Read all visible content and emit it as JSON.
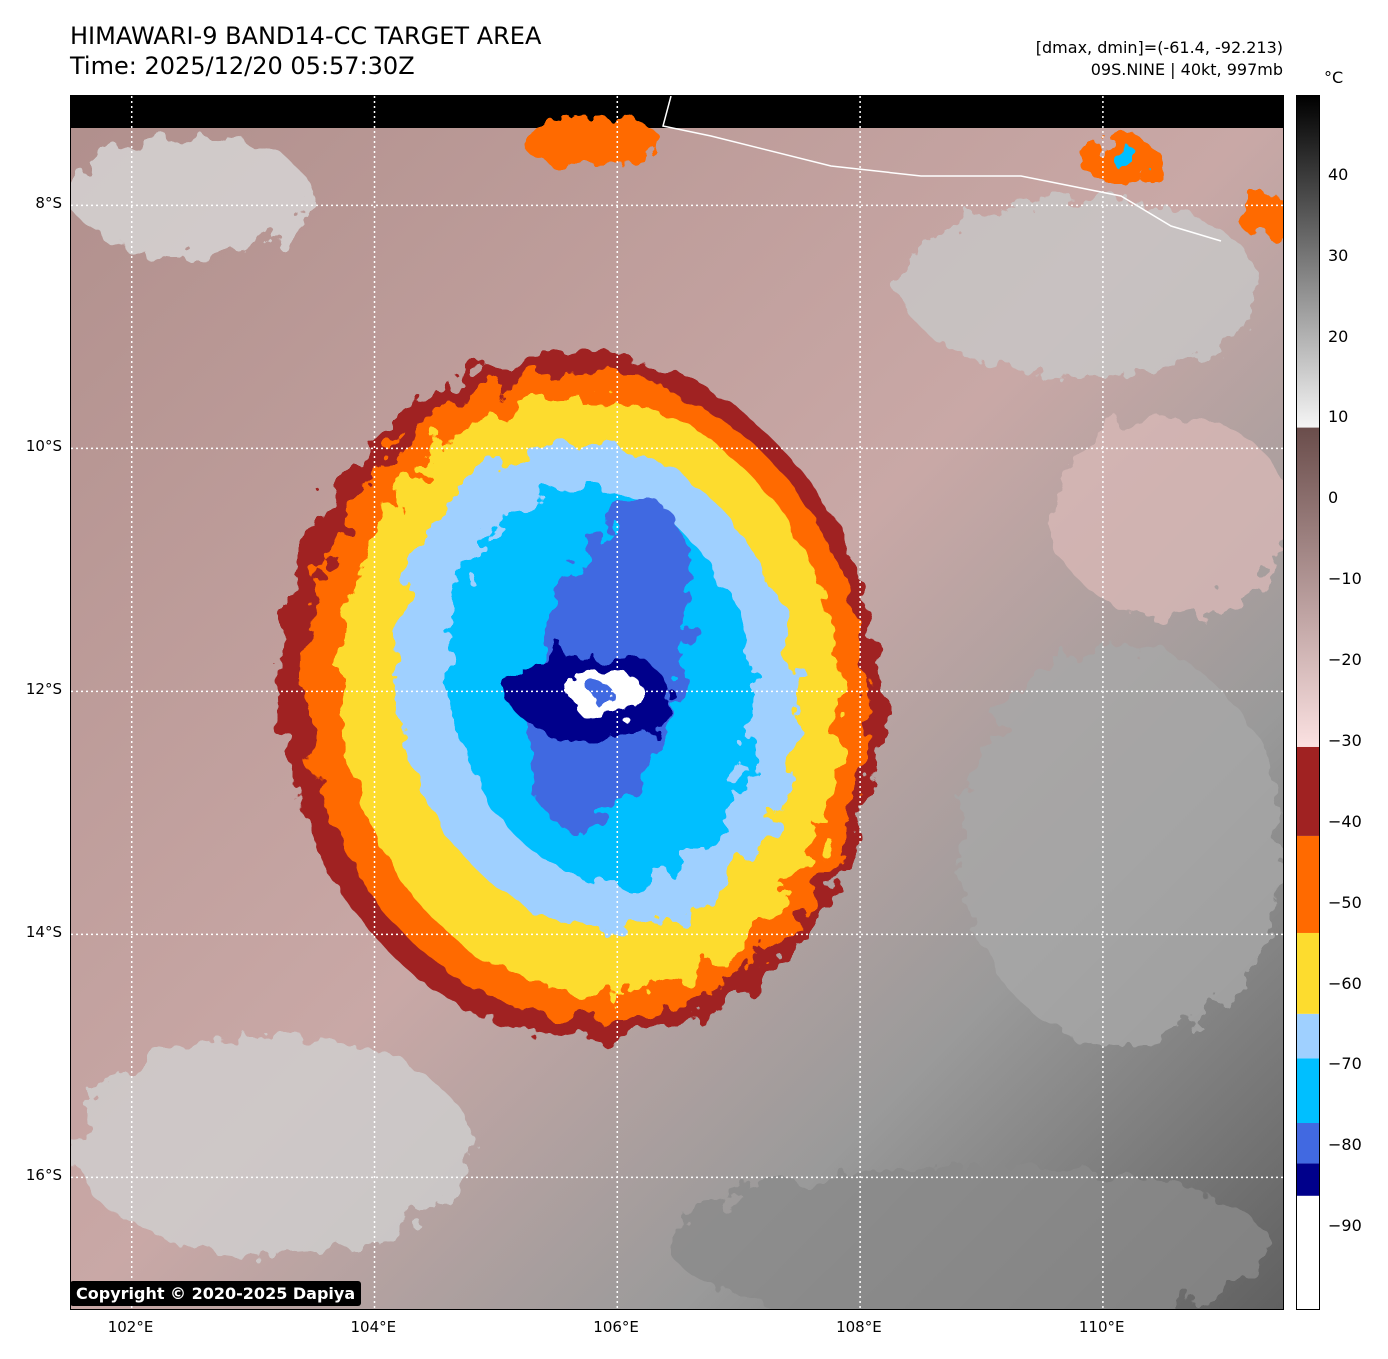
{
  "header": {
    "title": "HIMAWARI-9 BAND14-CC TARGET AREA",
    "time": "Time: 2025/12/20 05:57:30Z",
    "dmax_dmin": "[dmax, dmin]=(-61.4, -92.213)",
    "storm": "09S.NINE | 40kt, 997mb"
  },
  "copyright": "Copyright © 2020-2025 Dapiya",
  "map": {
    "lon_range": [
      101.5,
      111.5
    ],
    "lat_range": [
      -17.1,
      -7.1
    ],
    "lon_ticks": [
      {
        "v": 102,
        "label": "102°E"
      },
      {
        "v": 104,
        "label": "104°E"
      },
      {
        "v": 106,
        "label": "106°E"
      },
      {
        "v": 108,
        "label": "108°E"
      },
      {
        "v": 110,
        "label": "110°E"
      }
    ],
    "lat_ticks": [
      {
        "v": -8,
        "label": "8°S"
      },
      {
        "v": -10,
        "label": "10°S"
      },
      {
        "v": -12,
        "label": "12°S"
      },
      {
        "v": -14,
        "label": "14°S"
      },
      {
        "v": -16,
        "label": "16°S"
      }
    ],
    "storm_center": [
      105.9,
      -12.05
    ]
  },
  "colorbar": {
    "unit": "°C",
    "range": [
      -100,
      50
    ],
    "ticks": [
      {
        "v": 40,
        "label": "40"
      },
      {
        "v": 30,
        "label": "30"
      },
      {
        "v": 20,
        "label": "20"
      },
      {
        "v": 10,
        "label": "10"
      },
      {
        "v": 0,
        "label": "0"
      },
      {
        "v": -10,
        "label": "−10"
      },
      {
        "v": -20,
        "label": "−20"
      },
      {
        "v": -30,
        "label": "−30"
      },
      {
        "v": -40,
        "label": "−40"
      },
      {
        "v": -50,
        "label": "−50"
      },
      {
        "v": -60,
        "label": "−60"
      },
      {
        "v": -70,
        "label": "−70"
      },
      {
        "v": -80,
        "label": "−80"
      },
      {
        "v": -90,
        "label": "−90"
      }
    ],
    "segments": [
      {
        "from": -100,
        "to": -86,
        "color": "#ffffff"
      },
      {
        "from": -86,
        "to": -82,
        "color": "#00008b"
      },
      {
        "from": -82,
        "to": -77,
        "color": "#4169e1"
      },
      {
        "from": -77,
        "to": -69,
        "color": "#00bfff"
      },
      {
        "from": -69,
        "to": -63.5,
        "color": "#9fd0ff"
      },
      {
        "from": -63.5,
        "to": -53.5,
        "color": "#fddc2e"
      },
      {
        "from": -53.5,
        "to": -41.5,
        "color": "#ff6a00"
      },
      {
        "from": -41.5,
        "to": -30.5,
        "color": "#a02222"
      }
    ],
    "gradient_warm": [
      {
        "v": -30.5,
        "color": "#fbe1e1"
      },
      {
        "v": 9,
        "color": "#6a4d4b"
      }
    ],
    "gradient_gray": [
      {
        "v": 9,
        "color": "#f5f5f5"
      },
      {
        "v": 50,
        "color": "#000000"
      }
    ]
  }
}
